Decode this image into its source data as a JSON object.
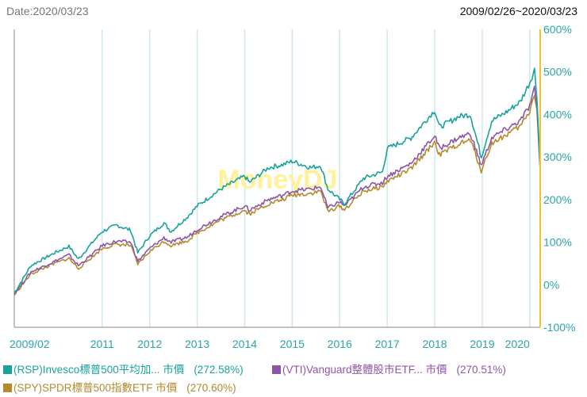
{
  "header": {
    "date_label": "Date:2020/03/23",
    "range_label": "2009/02/26~2020/03/23"
  },
  "watermark": "MoneyDJ",
  "colors": {
    "rsp": "#1aa39b",
    "vti": "#8e56a8",
    "spy": "#b38a2e",
    "axis_right": "#f5c22d",
    "grid": "#cfe9e8",
    "tick_text": "#2aa5a8",
    "watermark": "#fff29a"
  },
  "chart_data": {
    "type": "line",
    "title": "",
    "xlabel": "",
    "ylabel": "",
    "x_ticks": [
      "2009/02",
      "2011",
      "2012",
      "2013",
      "2014",
      "2015",
      "2016",
      "2017",
      "2018",
      "2019",
      "2020"
    ],
    "x_tick_pos": [
      2009.15,
      2011,
      2012,
      2013,
      2014,
      2015,
      2016,
      2017,
      2018,
      2019,
      2020
    ],
    "xlim": [
      2009.15,
      2020.22
    ],
    "ylim": [
      -100,
      600
    ],
    "y_ticks": [
      600,
      500,
      400,
      300,
      200,
      100,
      0,
      -100
    ],
    "y_tick_labels": [
      "600%",
      "500%",
      "400%",
      "300%",
      "200%",
      "100%",
      "0%",
      "-100%"
    ],
    "x": [
      2009.15,
      2009.5,
      2010.0,
      2010.3,
      2010.5,
      2010.8,
      2011.0,
      2011.3,
      2011.6,
      2011.75,
      2012.0,
      2012.3,
      2012.45,
      2012.8,
      2013.0,
      2013.5,
      2014.0,
      2014.1,
      2014.5,
      2014.8,
      2015.0,
      2015.4,
      2015.6,
      2015.75,
      2016.0,
      2016.1,
      2016.5,
      2016.9,
      2017.0,
      2017.5,
      2018.0,
      2018.1,
      2018.5,
      2018.75,
      2018.98,
      2019.2,
      2019.5,
      2019.8,
      2020.0,
      2020.1,
      2020.15,
      2020.22
    ],
    "series": [
      {
        "name": "(RSP)Invesco標普500平均加... 市價",
        "pct_label": "(272.58%)",
        "values": [
          -20,
          45,
          75,
          90,
          60,
          100,
          125,
          140,
          128,
          75,
          115,
          145,
          125,
          160,
          185,
          225,
          255,
          240,
          275,
          282,
          290,
          275,
          280,
          225,
          200,
          190,
          250,
          265,
          320,
          345,
          410,
          370,
          395,
          400,
          300,
          385,
          405,
          430,
          475,
          505,
          445,
          272
        ]
      },
      {
        "name": "(VTI)Vanguard整體股市ETF... 市價",
        "pct_label": "(270.51%)",
        "values": [
          -22,
          30,
          55,
          70,
          45,
          72,
          92,
          102,
          100,
          55,
          85,
          110,
          100,
          112,
          130,
          160,
          185,
          175,
          200,
          210,
          220,
          225,
          230,
          180,
          195,
          185,
          230,
          240,
          255,
          285,
          350,
          320,
          345,
          355,
          280,
          345,
          365,
          385,
          420,
          460,
          420,
          270
        ]
      },
      {
        "name": "(SPY)SPDR標普500指數ETF 市價",
        "pct_label": "(270.60%)",
        "values": [
          -24,
          25,
          50,
          62,
          38,
          66,
          85,
          95,
          92,
          48,
          78,
          102,
          92,
          104,
          122,
          152,
          175,
          166,
          190,
          200,
          210,
          215,
          220,
          172,
          185,
          176,
          220,
          230,
          243,
          272,
          335,
          305,
          330,
          340,
          268,
          332,
          352,
          372,
          408,
          450,
          412,
          271
        ]
      }
    ]
  }
}
